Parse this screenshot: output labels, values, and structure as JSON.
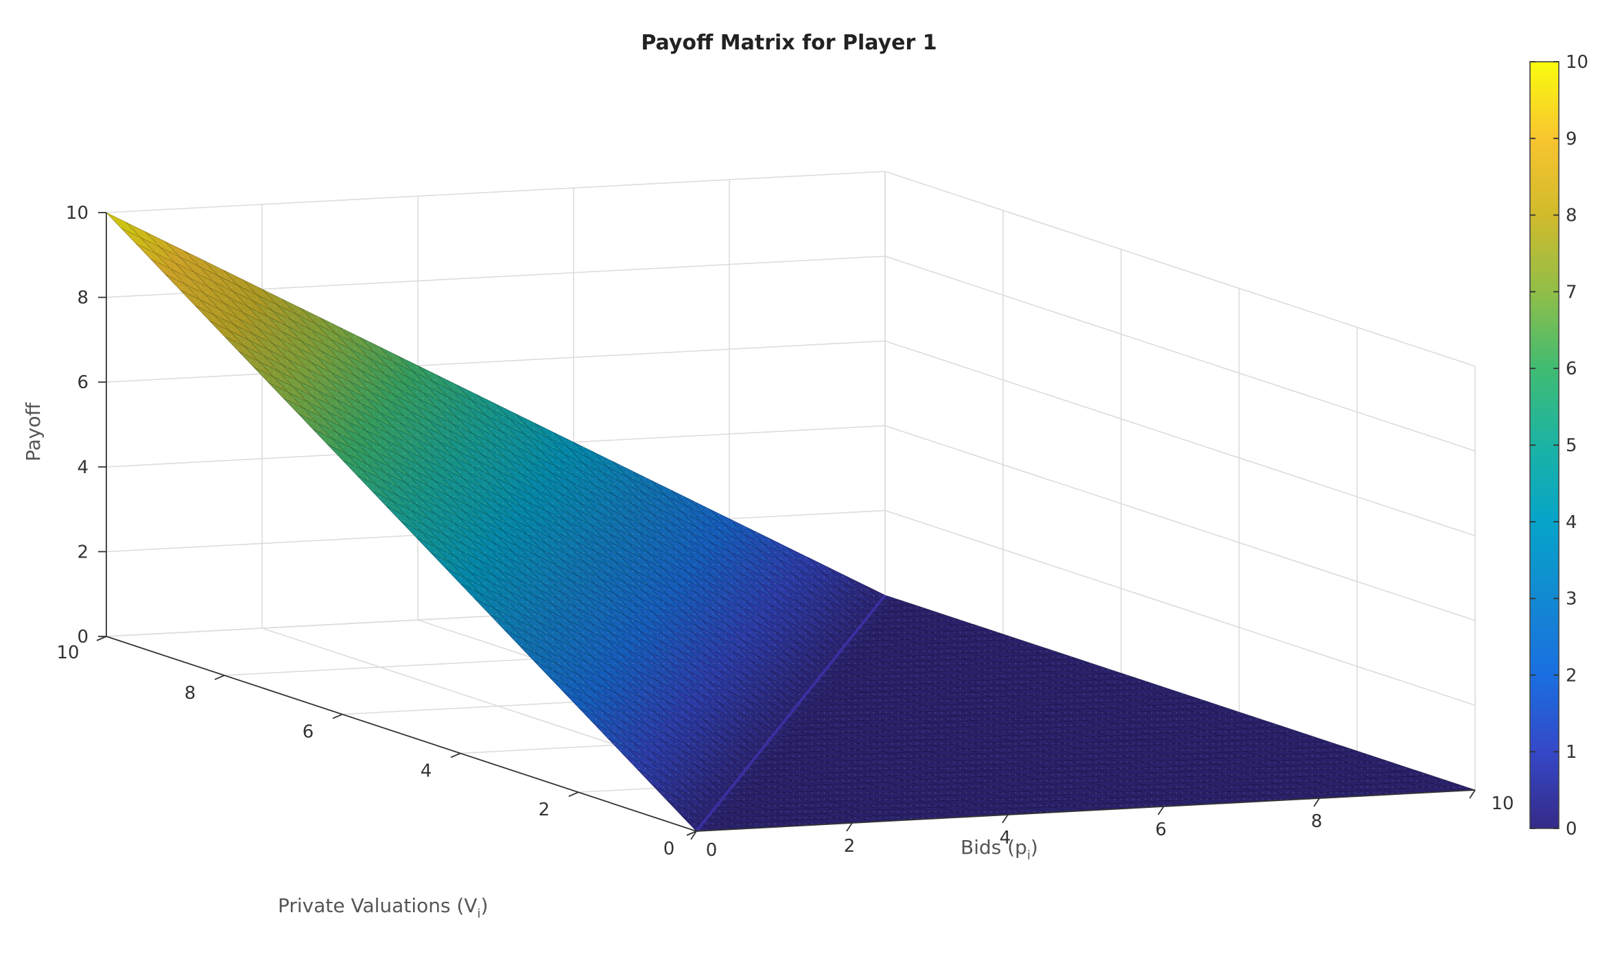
{
  "chart_data": {
    "type": "surface",
    "title": "Payoff Matrix for Player 1",
    "xlabel": "Bids (p",
    "xlabel_sub": "i",
    "xlabel_close": ")",
    "ylabel": "Private Valuations (V",
    "ylabel_sub": "i",
    "ylabel_close": ")",
    "zlabel": "Payoff",
    "xlim": [
      0,
      10
    ],
    "ylim": [
      0,
      10
    ],
    "zlim": [
      0,
      10
    ],
    "x_ticks": [
      "0",
      "2",
      "4",
      "6",
      "8",
      "10"
    ],
    "y_ticks": [
      "0",
      "2",
      "4",
      "6",
      "8",
      "10"
    ],
    "z_ticks": [
      "0",
      "2",
      "4",
      "6",
      "8",
      "10"
    ],
    "colorbar": {
      "colormap": "parula",
      "range": [
        0,
        10
      ],
      "ticks": [
        "0",
        "1",
        "2",
        "3",
        "4",
        "5",
        "6",
        "7",
        "8",
        "9",
        "10"
      ]
    },
    "surface": {
      "description_formula": "payoff = max(valuation - bid, 0)",
      "x_grid": [
        0,
        1,
        2,
        3,
        4,
        5,
        6,
        7,
        8,
        9,
        10
      ],
      "y_grid": [
        0,
        1,
        2,
        3,
        4,
        5,
        6,
        7,
        8,
        9,
        10
      ],
      "corner_values": [
        {
          "bid": 0,
          "valuation": 10,
          "payoff": 10
        },
        {
          "bid": 0,
          "valuation": 0,
          "payoff": 0
        },
        {
          "bid": 10,
          "valuation": 0,
          "payoff": 0
        },
        {
          "bid": 10,
          "valuation": 10,
          "payoff": 0
        }
      ]
    }
  }
}
